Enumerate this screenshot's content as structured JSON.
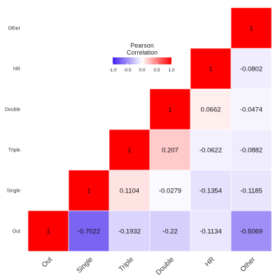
{
  "chart_data": {
    "type": "heatmap",
    "variables": [
      "Out",
      "Single",
      "Triple",
      "Double",
      "HR",
      "Other"
    ],
    "legend": {
      "title_lines": [
        "Pearson",
        "Correlation"
      ],
      "ticks": [
        -1.0,
        -0.5,
        0.0,
        0.5,
        1.0
      ],
      "tick_labels": [
        "-1.0",
        "-0.5",
        "0.0",
        "0.5",
        "1.0"
      ]
    },
    "colors": {
      "negative": "#4422ee",
      "neutral": "#ffffff",
      "positive": "#ff0000"
    },
    "cells": [
      {
        "row": "Out",
        "col": "Out",
        "value": 1,
        "label": "1"
      },
      {
        "row": "Out",
        "col": "Single",
        "value": -0.7022,
        "label": "-0.7022"
      },
      {
        "row": "Out",
        "col": "Triple",
        "value": -0.1932,
        "label": "-0.1932"
      },
      {
        "row": "Out",
        "col": "Double",
        "value": -0.22,
        "label": "-0.22"
      },
      {
        "row": "Out",
        "col": "HR",
        "value": -0.1134,
        "label": "-0.1134"
      },
      {
        "row": "Out",
        "col": "Other",
        "value": -0.5069,
        "label": "-0.5069"
      },
      {
        "row": "Single",
        "col": "Single",
        "value": 1,
        "label": "1"
      },
      {
        "row": "Single",
        "col": "Triple",
        "value": 0.1104,
        "label": "0.1104"
      },
      {
        "row": "Single",
        "col": "Double",
        "value": -0.0279,
        "label": "-0.0279"
      },
      {
        "row": "Single",
        "col": "HR",
        "value": -0.1354,
        "label": "-0.1354"
      },
      {
        "row": "Single",
        "col": "Other",
        "value": -0.1185,
        "label": "-0.1185"
      },
      {
        "row": "Triple",
        "col": "Triple",
        "value": 1,
        "label": "1"
      },
      {
        "row": "Triple",
        "col": "Double",
        "value": 0.207,
        "label": "0.207"
      },
      {
        "row": "Triple",
        "col": "HR",
        "value": -0.0622,
        "label": "-0.0622"
      },
      {
        "row": "Triple",
        "col": "Other",
        "value": -0.0882,
        "label": "-0.0882"
      },
      {
        "row": "Double",
        "col": "Double",
        "value": 1,
        "label": "1"
      },
      {
        "row": "Double",
        "col": "HR",
        "value": 0.0662,
        "label": "0.0662"
      },
      {
        "row": "Double",
        "col": "Other",
        "value": -0.0474,
        "label": "-0.0474"
      },
      {
        "row": "HR",
        "col": "HR",
        "value": 1,
        "label": "1"
      },
      {
        "row": "HR",
        "col": "Other",
        "value": -0.0802,
        "label": "-0.0802"
      },
      {
        "row": "Other",
        "col": "Other",
        "value": 1,
        "label": "1"
      }
    ]
  }
}
